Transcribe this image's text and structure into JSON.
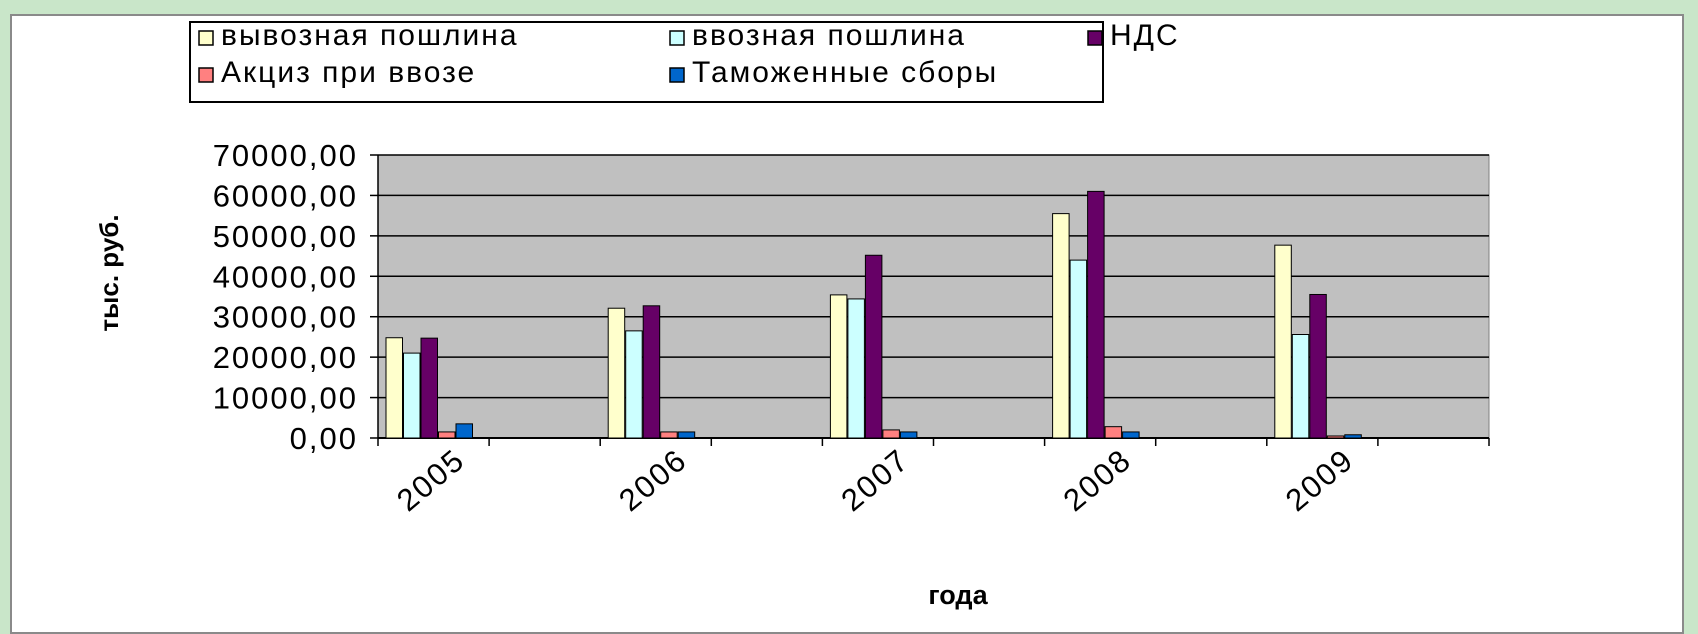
{
  "chart_data": {
    "type": "bar",
    "categories": [
      "2005",
      "2006",
      "2007",
      "2008",
      "2009"
    ],
    "series": [
      {
        "name": "вывозная пошлина",
        "color": "#ffffcc",
        "values": [
          24800,
          32100,
          35400,
          55500,
          47700
        ]
      },
      {
        "name": "ввозная пошлина",
        "color": "#ccffff",
        "values": [
          21000,
          26500,
          34400,
          44000,
          25600
        ]
      },
      {
        "name": "НДС",
        "color": "#660066",
        "values": [
          24700,
          32700,
          45200,
          61000,
          35500
        ]
      },
      {
        "name": "Акциз при ввозе",
        "color": "#ff8080",
        "values": [
          1500,
          1500,
          2000,
          2800,
          500
        ]
      },
      {
        "name": "Таможенные сборы",
        "color": "#0066cc",
        "values": [
          3500,
          1500,
          1500,
          1500,
          800
        ]
      }
    ],
    "ylabel": "тыс. руб.",
    "xlabel": "года",
    "ylim": [
      0,
      70000
    ],
    "yticks": [
      "0,00",
      "10000,00",
      "20000,00",
      "30000,00",
      "40000,00",
      "50000,00",
      "60000,00",
      "70000,00"
    ],
    "grid": true,
    "plot_background": "#c0c0c0",
    "legend_position": "top"
  }
}
